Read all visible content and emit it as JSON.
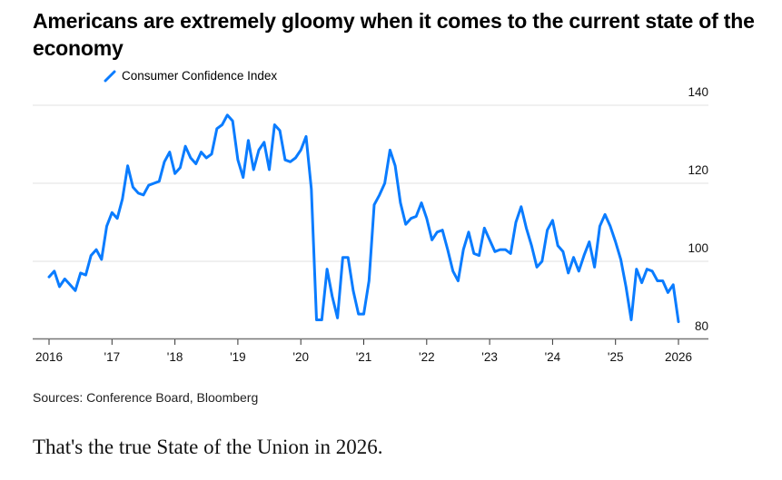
{
  "chart_data": {
    "type": "line",
    "title": "Americans are extremely gloomy when it comes to the current state of the economy",
    "legend": [
      "Consumer Confidence Index"
    ],
    "legend_placement": "top-left",
    "series_color": "#0a7cff",
    "x_start": "2016-01",
    "x_tick_labels": [
      "2016",
      "'17",
      "'18",
      "'19",
      "'20",
      "'21",
      "'22",
      "'23",
      "'24",
      "'25",
      "2026"
    ],
    "y_tick_labels": [
      "80",
      "100",
      "120",
      "140"
    ],
    "y_ticks": [
      80,
      100,
      120,
      140
    ],
    "ylim": [
      80,
      140
    ],
    "grid": true,
    "series": [
      {
        "name": "Consumer Confidence Index",
        "values": [
          96,
          97.5,
          93.5,
          95.5,
          94,
          92.5,
          97,
          96.5,
          101.5,
          103,
          100.5,
          109,
          112.5,
          111,
          116,
          124.5,
          119,
          117.5,
          117,
          119.5,
          120,
          120.5,
          125.5,
          128,
          122.5,
          124,
          129.5,
          126.5,
          125,
          128,
          126.5,
          127.5,
          134,
          135,
          137.5,
          136,
          126,
          121.5,
          131,
          123.5,
          128.5,
          130.5,
          123.5,
          135,
          133.5,
          126,
          125.5,
          126.5,
          128.5,
          132,
          118.5,
          85,
          85,
          98,
          91,
          85.5,
          101,
          101,
          92.5,
          86.5,
          86.5,
          95,
          114.5,
          117,
          120,
          128.5,
          124.5,
          115,
          109.5,
          111,
          111.5,
          115,
          111,
          105.5,
          107.5,
          108,
          103,
          97.5,
          95,
          103,
          107.5,
          102,
          101.5,
          108.5,
          105.5,
          102.5,
          103,
          103,
          102,
          110,
          114,
          108.5,
          104,
          98.5,
          100,
          108,
          110.5,
          104,
          102.5,
          97,
          101,
          97.5,
          101.5,
          105,
          98.5,
          109,
          112,
          109,
          105,
          100.5,
          93.5,
          85,
          98,
          94.5,
          98,
          97.5,
          95,
          95,
          92,
          94,
          84.5
        ]
      }
    ]
  },
  "source": "Sources: Conference Board, Bloomberg",
  "caption": "That's the true State of the Union in 2026."
}
